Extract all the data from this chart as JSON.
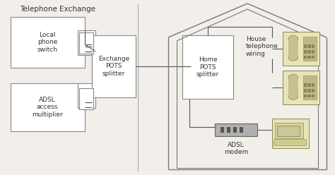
{
  "bg_color": "#f2efea",
  "white": "#ffffff",
  "box_edge": "#888888",
  "line_color": "#555555",
  "phone_fill": "#e8e4b8",
  "phone_edge": "#888855",
  "modem_fill": "#a8a8a8",
  "computer_fill": "#e8e4b8",
  "title": "Telephone Exchange",
  "labels": {
    "local_phone": "Local\nphone\nswitch",
    "adsl_access": "ADSL\naccess\nmultiplier",
    "exchange_pots": "Exchange\nPOTS\nsplitter",
    "home_pots": "Home\nPOTS\nsplitter",
    "house_tel": "House\ntelephone\nwiring",
    "adsl_modem": "ADSL\nmodem"
  },
  "fontsize": 6.5,
  "title_fontsize": 7.5
}
